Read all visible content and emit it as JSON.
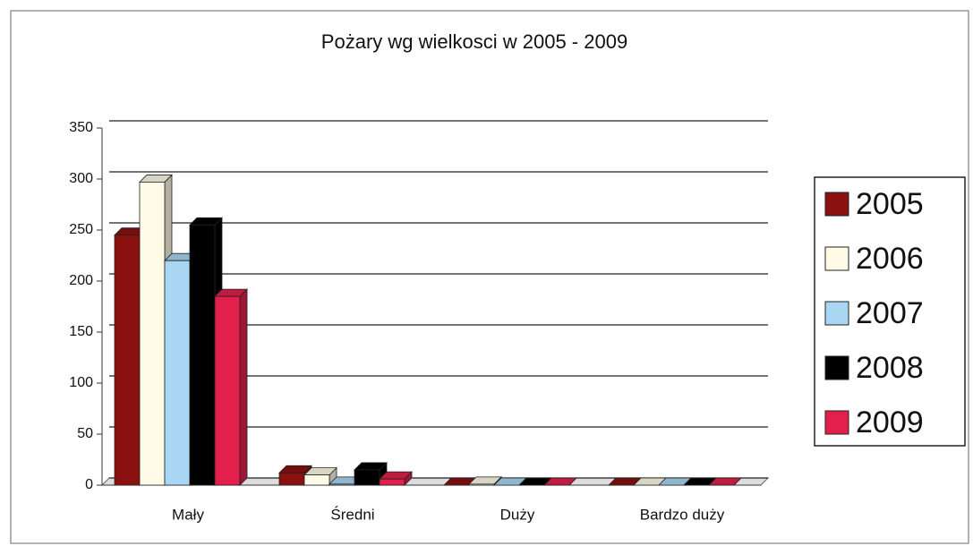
{
  "chart_data": {
    "type": "bar",
    "title": "Pożary wg wielkosci w 2005 - 2009",
    "categories": [
      "Mały",
      "Średni",
      "Duży",
      "Bardzo duży"
    ],
    "series": [
      {
        "name": "2005",
        "color": "#8b1111",
        "values": [
          245,
          12,
          0,
          0
        ]
      },
      {
        "name": "2006",
        "color": "#fffbe6",
        "values": [
          297,
          10,
          1,
          0
        ]
      },
      {
        "name": "2007",
        "color": "#a9d6f2",
        "values": [
          220,
          1,
          0,
          0
        ]
      },
      {
        "name": "2008",
        "color": "#000000",
        "values": [
          255,
          15,
          0,
          0
        ]
      },
      {
        "name": "2009",
        "color": "#e2204b",
        "values": [
          185,
          6,
          0,
          0
        ]
      }
    ],
    "ylim": [
      0,
      350
    ],
    "yticks": [
      0,
      50,
      100,
      150,
      200,
      250,
      300,
      350
    ],
    "grid": true,
    "legend": "right"
  }
}
